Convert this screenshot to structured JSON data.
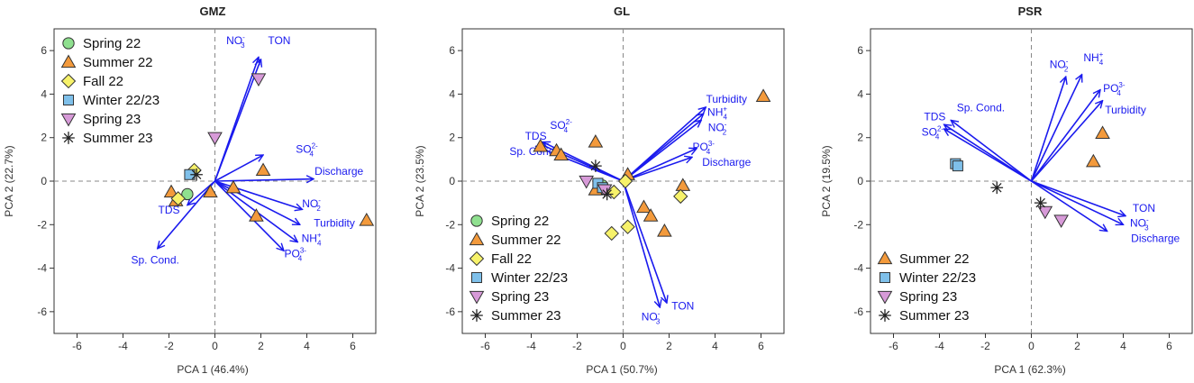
{
  "colors": {
    "arrow": "#1a1aee",
    "spring22": "#8fe08f",
    "summer22": "#f39a3c",
    "fall22": "#f7f26a",
    "winter2223": "#7fc0ea",
    "spring23": "#d79ad8",
    "summer23": "#222222",
    "zero_line": "#888888",
    "frame": "#333333"
  },
  "chart_data": [
    {
      "type": "scatter",
      "title": "GMZ",
      "xlabel": "PCA 1 (46.4%)",
      "ylabel": "PCA 2 (22.7%)",
      "xlim": [
        -7,
        7
      ],
      "ylim": [
        -7,
        7
      ],
      "xticks": [
        -6,
        -4,
        -2,
        0,
        2,
        4,
        6
      ],
      "yticks": [
        -6,
        -4,
        -2,
        0,
        2,
        4,
        6
      ],
      "legend_position": "top-left",
      "legend": [
        "Spring 22",
        "Summer 22",
        "Fall 22",
        "Winter 22/23",
        "Spring 23",
        "Summer 23"
      ],
      "loadings": [
        {
          "name": "NO3-",
          "label": "NO",
          "sub": "3",
          "sup": "-",
          "x": 1.9,
          "y": 5.7,
          "lx": 0.9,
          "ly": 6.3
        },
        {
          "name": "TON",
          "label": "TON",
          "sub": "",
          "sup": "",
          "x": 2.0,
          "y": 5.6,
          "lx": 2.8,
          "ly": 6.3
        },
        {
          "name": "SO42-",
          "label": "SO",
          "sub": "4",
          "sup": "2-",
          "x": 2.1,
          "y": 1.2,
          "lx": 4.0,
          "ly": 1.3
        },
        {
          "name": "Discharge",
          "label": "Discharge",
          "sub": "",
          "sup": "",
          "x": 4.3,
          "y": 0.1,
          "lx": 5.4,
          "ly": 0.3
        },
        {
          "name": "NO2-",
          "label": "NO",
          "sub": "2",
          "sup": "-",
          "x": 3.8,
          "y": -1.3,
          "lx": 4.2,
          "ly": -1.2
        },
        {
          "name": "Turbidity",
          "label": "Turbidity",
          "sub": "",
          "sup": "",
          "x": 3.7,
          "y": -2.0,
          "lx": 5.2,
          "ly": -2.1
        },
        {
          "name": "NH4+",
          "label": "NH",
          "sub": "4",
          "sup": "+",
          "x": 3.6,
          "y": -2.8,
          "lx": 4.2,
          "ly": -2.8
        },
        {
          "name": "PO43-",
          "label": "PO",
          "sub": "4",
          "sup": "3-",
          "x": 3.0,
          "y": -3.2,
          "lx": 3.5,
          "ly": -3.5
        },
        {
          "name": "TDS",
          "label": "TDS",
          "sub": "",
          "sup": "",
          "x": -1.2,
          "y": -1.1,
          "lx": -2.0,
          "ly": -1.5
        },
        {
          "name": "Sp. Cond.",
          "label": "Sp. Cond.",
          "sub": "",
          "sup": "",
          "x": -2.5,
          "y": -3.1,
          "lx": -2.6,
          "ly": -3.8
        }
      ],
      "points": [
        {
          "season": "Spring 22",
          "x": -1.2,
          "y": -0.6
        },
        {
          "season": "Summer 22",
          "x": -1.9,
          "y": -0.5
        },
        {
          "season": "Summer 22",
          "x": -1.7,
          "y": -0.9
        },
        {
          "season": "Summer 22",
          "x": -0.2,
          "y": -0.5
        },
        {
          "season": "Summer 22",
          "x": 0.8,
          "y": -0.3
        },
        {
          "season": "Summer 22",
          "x": 2.1,
          "y": 0.5
        },
        {
          "season": "Summer 22",
          "x": 1.8,
          "y": -1.6
        },
        {
          "season": "Summer 22",
          "x": 6.6,
          "y": -1.8
        },
        {
          "season": "Fall 22",
          "x": -1.6,
          "y": -0.8
        },
        {
          "season": "Fall 22",
          "x": -0.9,
          "y": 0.5
        },
        {
          "season": "Winter 22/23",
          "x": -1.1,
          "y": 0.3
        },
        {
          "season": "Spring 23",
          "x": 0.0,
          "y": 2.0
        },
        {
          "season": "Spring 23",
          "x": 1.9,
          "y": 4.7
        },
        {
          "season": "Summer 23",
          "x": -0.8,
          "y": 0.3
        }
      ]
    },
    {
      "type": "scatter",
      "title": "GL",
      "xlabel": "PCA 1 (50.7%)",
      "ylabel": "PCA 2 (23.5%)",
      "xlim": [
        -7,
        7
      ],
      "ylim": [
        -7,
        7
      ],
      "xticks": [
        -6,
        -4,
        -2,
        0,
        2,
        4,
        6
      ],
      "yticks": [
        -6,
        -4,
        -2,
        0,
        2,
        4,
        6
      ],
      "legend_position": "bottom-left",
      "legend": [
        "Spring 22",
        "Summer 22",
        "Fall 22",
        "Winter 22/23",
        "Spring 23",
        "Summer 23"
      ],
      "loadings": [
        {
          "name": "Turbidity",
          "label": "Turbidity",
          "sub": "",
          "sup": "",
          "x": 3.6,
          "y": 3.4,
          "lx": 4.5,
          "ly": 3.6
        },
        {
          "name": "NH4+",
          "label": "NH",
          "sub": "4",
          "sup": "+",
          "x": 3.5,
          "y": 3.1,
          "lx": 4.1,
          "ly": 3.0
        },
        {
          "name": "NO2-",
          "label": "NO",
          "sub": "2",
          "sup": "-",
          "x": 3.4,
          "y": 2.8,
          "lx": 4.1,
          "ly": 2.3
        },
        {
          "name": "PO43-",
          "label": "PO",
          "sub": "4",
          "sup": "3-",
          "x": 3.2,
          "y": 1.5,
          "lx": 3.5,
          "ly": 1.4
        },
        {
          "name": "Discharge",
          "label": "Discharge",
          "sub": "",
          "sup": "",
          "x": 3.0,
          "y": 1.1,
          "lx": 4.5,
          "ly": 0.7
        },
        {
          "name": "SO42-",
          "label": "SO",
          "sub": "4",
          "sup": "2-",
          "x": -3.5,
          "y": 1.8,
          "lx": -2.7,
          "ly": 2.4
        },
        {
          "name": "TDS",
          "label": "TDS",
          "sub": "",
          "sup": "",
          "x": -3.8,
          "y": 1.6,
          "lx": -3.8,
          "ly": 1.9
        },
        {
          "name": "Sp. Cond.",
          "label": "Sp. Cond.",
          "sub": "",
          "sup": "",
          "x": -3.6,
          "y": 1.7,
          "lx": -3.9,
          "ly": 1.2
        },
        {
          "name": "TON",
          "label": "TON",
          "sub": "",
          "sup": "",
          "x": 1.9,
          "y": -5.6,
          "lx": 2.6,
          "ly": -5.9
        },
        {
          "name": "NO3-",
          "label": "NO",
          "sub": "3",
          "sup": "-",
          "x": 1.6,
          "y": -5.8,
          "lx": 1.2,
          "ly": -6.4
        }
      ],
      "points": [
        {
          "season": "Spring 22",
          "x": -0.9,
          "y": -0.2
        },
        {
          "season": "Summer 22",
          "x": -3.6,
          "y": 1.6
        },
        {
          "season": "Summer 22",
          "x": -2.9,
          "y": 1.4
        },
        {
          "season": "Summer 22",
          "x": -2.7,
          "y": 1.2
        },
        {
          "season": "Summer 22",
          "x": -1.2,
          "y": 1.8
        },
        {
          "season": "Summer 22",
          "x": -1.2,
          "y": -0.4
        },
        {
          "season": "Summer 22",
          "x": 0.2,
          "y": 0.3
        },
        {
          "season": "Summer 22",
          "x": 0.9,
          "y": -1.2
        },
        {
          "season": "Summer 22",
          "x": 1.2,
          "y": -1.6
        },
        {
          "season": "Summer 22",
          "x": 1.8,
          "y": -2.3
        },
        {
          "season": "Summer 22",
          "x": 2.6,
          "y": -0.2
        },
        {
          "season": "Summer 22",
          "x": 6.1,
          "y": 3.9
        },
        {
          "season": "Fall 22",
          "x": -0.5,
          "y": -2.4
        },
        {
          "season": "Fall 22",
          "x": 0.2,
          "y": -2.1
        },
        {
          "season": "Fall 22",
          "x": 2.5,
          "y": -0.7
        },
        {
          "season": "Fall 22",
          "x": -0.4,
          "y": -0.5
        },
        {
          "season": "Fall 22",
          "x": 0.1,
          "y": 0.0
        },
        {
          "season": "Winter 22/23",
          "x": -1.1,
          "y": -0.1
        },
        {
          "season": "Winter 22/23",
          "x": -0.9,
          "y": -0.3
        },
        {
          "season": "Spring 23",
          "x": -1.6,
          "y": 0.0
        },
        {
          "season": "Spring 23",
          "x": -0.8,
          "y": -0.4
        },
        {
          "season": "Summer 23",
          "x": -1.2,
          "y": 0.7
        },
        {
          "season": "Summer 23",
          "x": -0.7,
          "y": -0.6
        }
      ]
    },
    {
      "type": "scatter",
      "title": "PSR",
      "xlabel": "PCA 1 (62.3%)",
      "ylabel": "PCA 2 (19.5%)",
      "xlim": [
        -7,
        7
      ],
      "ylim": [
        -7,
        7
      ],
      "xticks": [
        -6,
        -4,
        -2,
        0,
        2,
        4,
        6
      ],
      "yticks": [
        -6,
        -4,
        -2,
        0,
        2,
        4,
        6
      ],
      "legend_position": "bottom-left",
      "legend": [
        "Summer 22",
        "Winter 22/23",
        "Spring 23",
        "Summer 23"
      ],
      "loadings": [
        {
          "name": "NO2-",
          "label": "NO",
          "sub": "2",
          "sup": "-",
          "x": 1.5,
          "y": 4.8,
          "lx": 1.2,
          "ly": 5.2
        },
        {
          "name": "NH4+",
          "label": "NH",
          "sub": "4",
          "sup": "+",
          "x": 2.2,
          "y": 4.9,
          "lx": 2.7,
          "ly": 5.5
        },
        {
          "name": "PO43-",
          "label": "PO",
          "sub": "4",
          "sup": "3-",
          "x": 3.0,
          "y": 4.2,
          "lx": 3.6,
          "ly": 4.1
        },
        {
          "name": "Turbidity",
          "label": "Turbidity",
          "sub": "",
          "sup": "",
          "x": 3.1,
          "y": 3.7,
          "lx": 4.1,
          "ly": 3.1
        },
        {
          "name": "Sp. Cond.",
          "label": "Sp. Cond.",
          "sub": "",
          "sup": "",
          "x": -3.5,
          "y": 2.8,
          "lx": -2.2,
          "ly": 3.2
        },
        {
          "name": "TDS",
          "label": "TDS",
          "sub": "",
          "sup": "",
          "x": -3.8,
          "y": 2.6,
          "lx": -4.2,
          "ly": 2.8
        },
        {
          "name": "SO42-",
          "label": "SO",
          "sub": "4",
          "sup": "2-",
          "x": -3.8,
          "y": 2.4,
          "lx": -4.3,
          "ly": 2.1
        },
        {
          "name": "TON",
          "label": "TON",
          "sub": "",
          "sup": "",
          "x": 4.1,
          "y": -1.6,
          "lx": 4.9,
          "ly": -1.4
        },
        {
          "name": "NO3-",
          "label": "NO",
          "sub": "3",
          "sup": "-",
          "x": 4.0,
          "y": -2.0,
          "lx": 4.7,
          "ly": -2.1
        },
        {
          "name": "Discharge",
          "label": "Discharge",
          "sub": "",
          "sup": "",
          "x": 3.3,
          "y": -2.3,
          "lx": 5.4,
          "ly": -2.8
        }
      ],
      "points": [
        {
          "season": "Summer 22",
          "x": 3.1,
          "y": 2.2
        },
        {
          "season": "Summer 22",
          "x": 2.7,
          "y": 0.9
        },
        {
          "season": "Winter 22/23",
          "x": -3.3,
          "y": 0.8
        },
        {
          "season": "Winter 22/23",
          "x": -3.2,
          "y": 0.7
        },
        {
          "season": "Spring 23",
          "x": 0.6,
          "y": -1.4
        },
        {
          "season": "Spring 23",
          "x": 1.3,
          "y": -1.8
        },
        {
          "season": "Summer 23",
          "x": -1.5,
          "y": -0.3
        },
        {
          "season": "Summer 23",
          "x": 0.4,
          "y": -1.0
        }
      ]
    }
  ]
}
